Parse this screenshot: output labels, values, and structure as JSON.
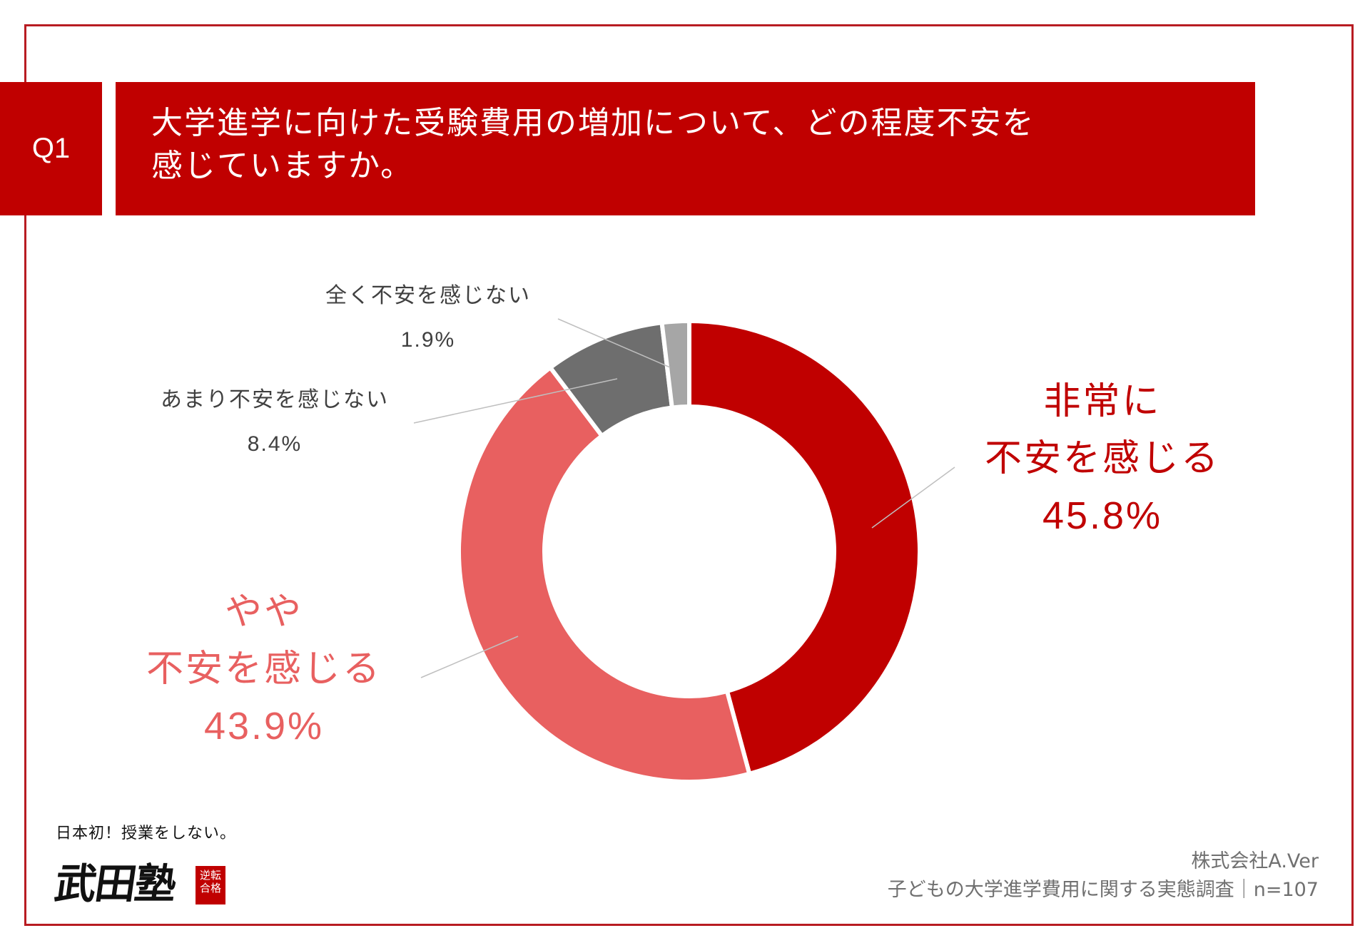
{
  "header": {
    "badge": "Q1",
    "question_line1": "大学進学に向けた受験費用の増加について、どの程度不安を",
    "question_line2": "感じていますか。"
  },
  "chart_data": {
    "type": "pie",
    "donut": true,
    "categories": [
      "非常に不安を感じる",
      "やや不安を感じる",
      "あまり不安を感じない",
      "全く不安を感じない"
    ],
    "values": [
      45.8,
      43.9,
      8.4,
      1.9
    ],
    "unit": "%",
    "colors": [
      "#c00000",
      "#e86060",
      "#6e6e6e",
      "#a6a6a6"
    ]
  },
  "labels": {
    "very": {
      "line1": "非常に",
      "line2": "不安を感じる",
      "pct": "45.8%"
    },
    "somewhat": {
      "line1": "やや",
      "line2": "不安を感じる",
      "pct": "43.9%"
    },
    "little": {
      "line1": "あまり不安を感じない",
      "pct": "8.4%"
    },
    "none": {
      "line1": "全く不安を感じない",
      "pct": "1.9%"
    }
  },
  "logo": {
    "tagline": "日本初！授業をしない。",
    "name": "武田塾",
    "stamp": "逆転合格"
  },
  "source": {
    "company": "株式会社A.Ver",
    "survey": "子どもの大学進学費用に関する実態調査｜n=107"
  }
}
